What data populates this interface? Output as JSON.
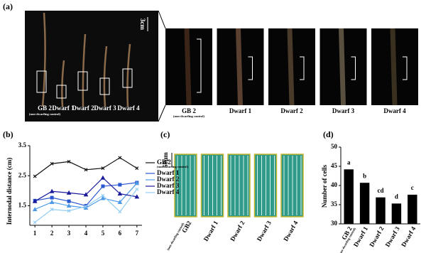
{
  "panel_a": {
    "label": "(a)",
    "scale_large": "3cm",
    "scale_small": "1cm",
    "tree_labels": [
      "GB 2",
      "Dwarf 1",
      "Dwarf 2",
      "Dwarf 3",
      "Dwarf 4"
    ],
    "tree_note": "(non-dwarfing control)",
    "detail_labels": [
      "GB 2",
      "Dwarf 1",
      "Dwarf 2",
      "Dwarf 3",
      "Dwarf 4"
    ],
    "detail_note": "(non-dwarfing control)"
  },
  "panel_c": {
    "label": "(c)",
    "scale": "50μm",
    "labels": [
      "GB2",
      "Dwarf 1",
      "Dwarf 2",
      "Dwarf 3",
      "Dwarf 4"
    ],
    "note": "(non-dwarfing control)"
  },
  "chart_data": [
    {
      "type": "line",
      "panel": "(b)",
      "y_label": "Internodal distance (cm)",
      "x": [
        1,
        2,
        3,
        4,
        5,
        6,
        7
      ],
      "xlim": [
        0.7,
        7.3
      ],
      "xticks": [
        1,
        2,
        3,
        4,
        5,
        6,
        7
      ],
      "ylim": [
        0.85,
        3.5
      ],
      "yticks": [
        1.5,
        2.5,
        3.5
      ],
      "legend_note": "(non-dwarfing control)",
      "series": [
        {
          "name": "GB 2",
          "color": "#111111",
          "marker": "x",
          "values": [
            2.48,
            2.9,
            2.97,
            2.7,
            2.75,
            3.1,
            2.75
          ]
        },
        {
          "name": "Dwarf 1",
          "color": "#2b57d0",
          "marker": "square",
          "values": [
            1.67,
            1.77,
            1.65,
            1.5,
            2.15,
            2.2,
            2.27
          ]
        },
        {
          "name": "Dwarf 2",
          "color": "#4f9ae6",
          "marker": "triangle",
          "values": [
            1.38,
            1.62,
            1.5,
            1.43,
            1.75,
            1.62,
            2.25
          ]
        },
        {
          "name": "Dwarf 3",
          "color": "#1a1a9a",
          "marker": "triangle",
          "values": [
            1.65,
            1.98,
            1.93,
            1.87,
            2.43,
            1.9,
            1.8
          ]
        },
        {
          "name": "Dwarf 4",
          "color": "#95cdf2",
          "marker": "x",
          "values": [
            0.95,
            1.38,
            1.33,
            1.48,
            1.84,
            1.3,
            2.05
          ]
        }
      ]
    },
    {
      "type": "bar",
      "panel": "(d)",
      "y_label": "Number of cells",
      "categories": [
        "GB 2",
        "Dwarf 1",
        "Dwarf 2",
        "Dwarf 3",
        "Dwarf 4"
      ],
      "category_note": "(non-dwarfing control)",
      "values": [
        44.2,
        40.7,
        36.9,
        35.3,
        37.6
      ],
      "annotations": [
        "a",
        "b",
        "cd",
        "d",
        "c"
      ],
      "color": "#000000",
      "ylim": [
        30,
        50
      ],
      "yticks": [
        30,
        35,
        40,
        45,
        50
      ]
    }
  ]
}
